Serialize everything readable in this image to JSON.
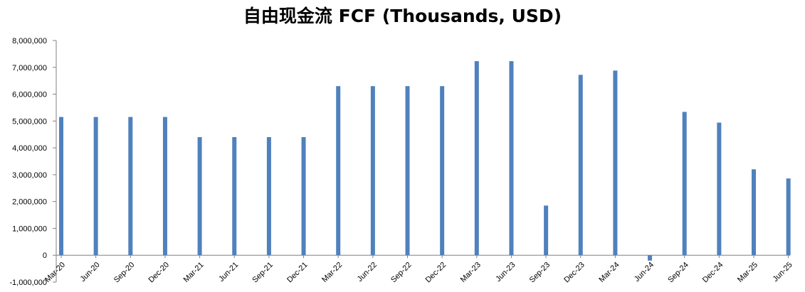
{
  "chart_data": {
    "type": "bar",
    "title": "自由现金流 FCF (Thousands, USD)",
    "xlabel": "",
    "ylabel": "",
    "ylim": [
      -1000000,
      8000000
    ],
    "yticks": [
      -1000000,
      0,
      1000000,
      2000000,
      3000000,
      4000000,
      5000000,
      6000000,
      7000000,
      8000000
    ],
    "ytick_labels": [
      "-1,000,000",
      "0",
      "1,000,000",
      "2,000,000",
      "3,000,000",
      "4,000,000",
      "5,000,000",
      "6,000,000",
      "7,000,000",
      "8,000,000"
    ],
    "categories": [
      "Mar-20",
      "Jun-20",
      "Sep-20",
      "Dec-20",
      "Mar-21",
      "Jun-21",
      "Sep-21",
      "Dec-21",
      "Mar-22",
      "Jun-22",
      "Sep-22",
      "Dec-22",
      "Mar-23",
      "Jun-23",
      "Sep-23",
      "Dec-23",
      "Mar-24",
      "Jun-24",
      "Sep-24",
      "Dec-24",
      "Mar-25",
      "Jun-25"
    ],
    "values": [
      5150000,
      5150000,
      5150000,
      5150000,
      4400000,
      4400000,
      4400000,
      4400000,
      6300000,
      6300000,
      6300000,
      6300000,
      7230000,
      7230000,
      1850000,
      6720000,
      6880000,
      -200000,
      5340000,
      4940000,
      3200000,
      2860000
    ],
    "bar_color": "#4f81bd",
    "grid": false,
    "legend": "none"
  }
}
